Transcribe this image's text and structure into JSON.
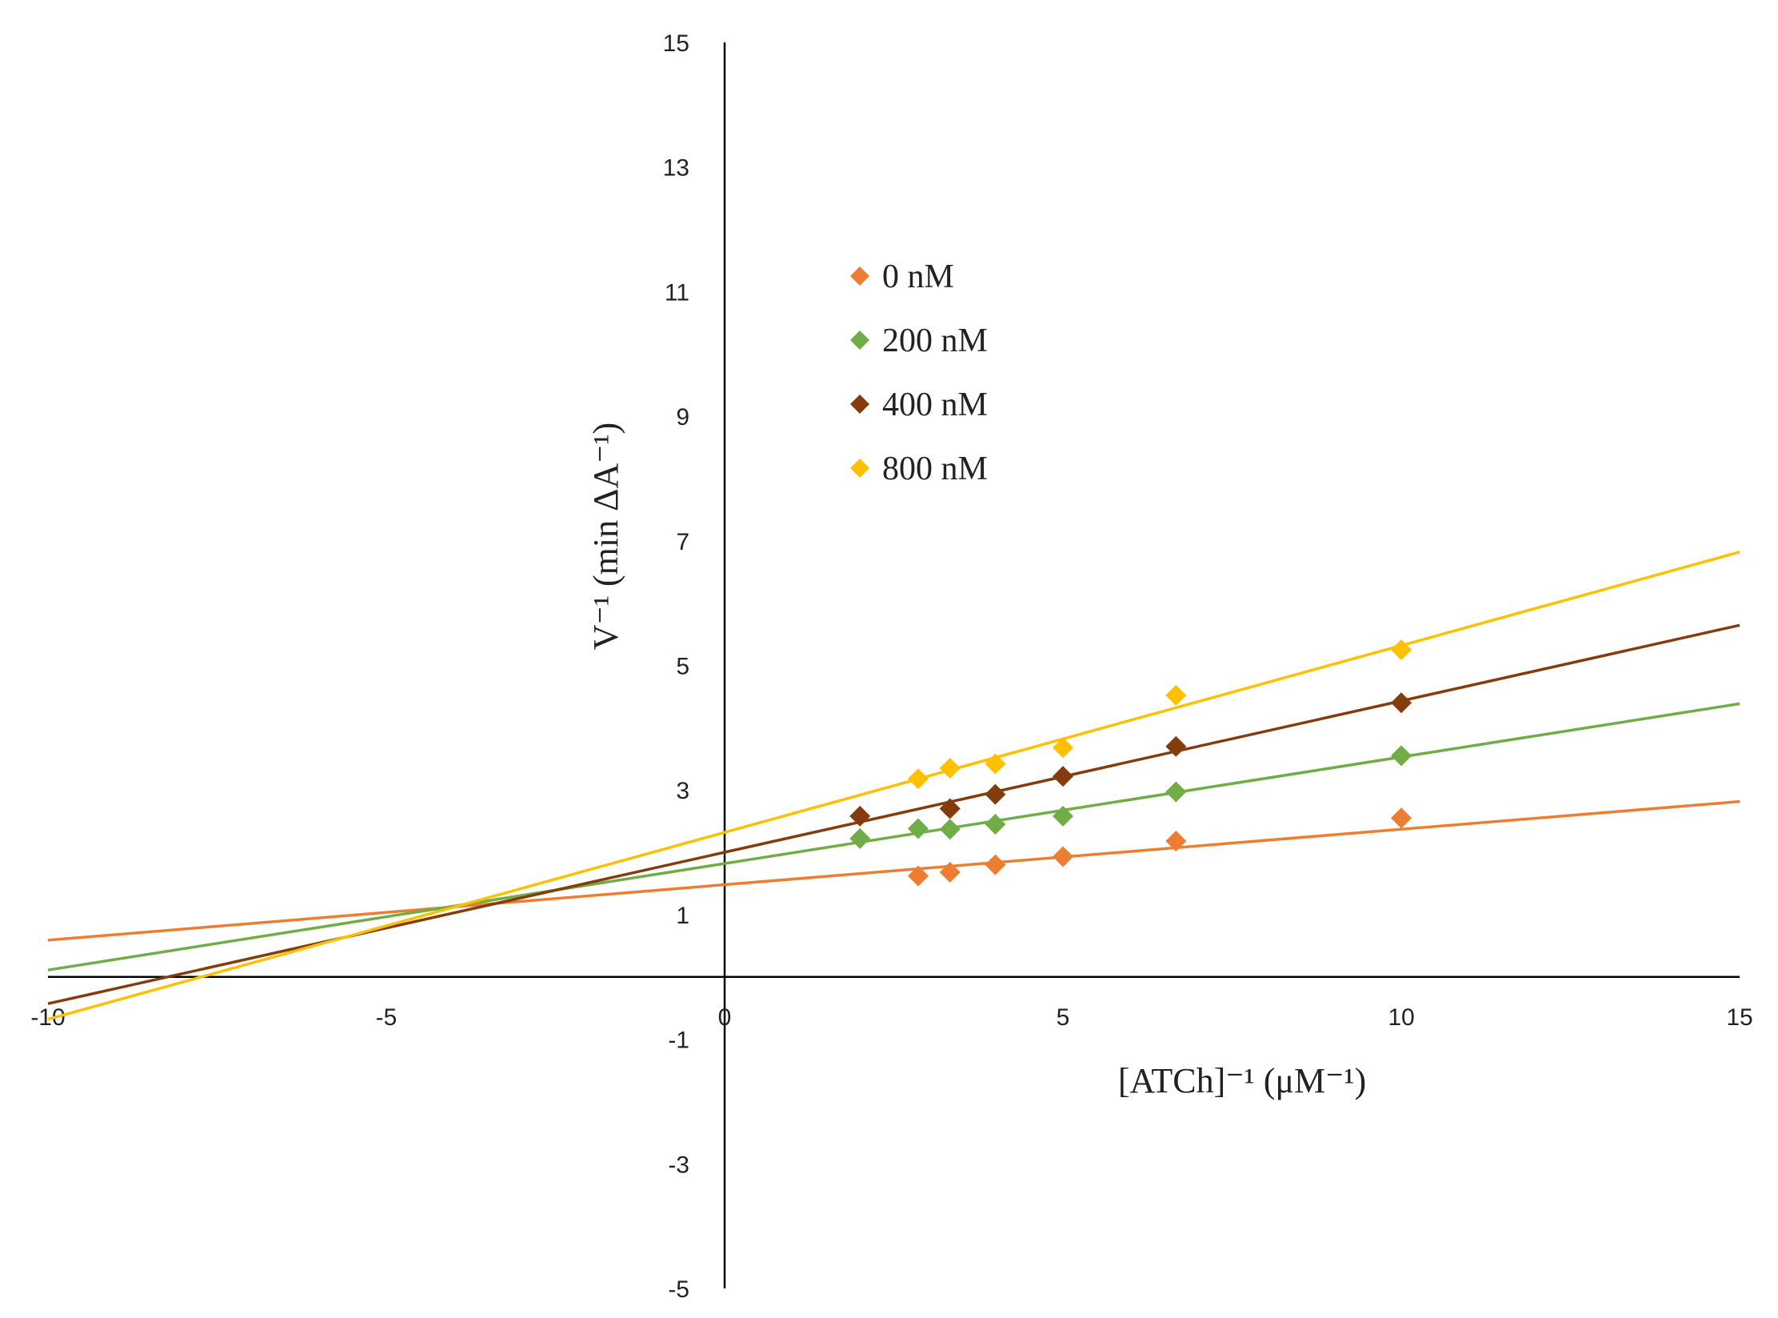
{
  "chart_data": {
    "type": "scatter",
    "title": "",
    "xlabel": "[ATCh]⁻¹ (μM⁻¹)",
    "ylabel": "V⁻¹ (min ΔA⁻¹)",
    "xlim": [
      -10,
      15
    ],
    "ylim": [
      -5,
      15
    ],
    "x_ticks": [
      -10,
      -5,
      0,
      5,
      10,
      15
    ],
    "y_ticks": [
      -5,
      -3,
      -1,
      1,
      3,
      5,
      7,
      9,
      11,
      13,
      15
    ],
    "x_tick_labels": [
      "-10",
      "-5",
      "0",
      "5",
      "10",
      "15"
    ],
    "y_tick_labels": [
      "-5",
      "-3",
      "-1",
      "1",
      "3",
      "5",
      "7",
      "9",
      "11",
      "13",
      "15"
    ],
    "legend_position": "upper-left-center",
    "series": [
      {
        "name": "0 nM",
        "color": "#ED7D31",
        "marker": "diamond",
        "points": [
          [
            2.86,
            1.62
          ],
          [
            3.33,
            1.68
          ],
          [
            4.0,
            1.8
          ],
          [
            5.0,
            1.93
          ],
          [
            6.67,
            2.18
          ],
          [
            10.0,
            2.55
          ]
        ],
        "trendline": {
          "slope": 0.089,
          "intercept": 1.48
        }
      },
      {
        "name": "200 nM",
        "color": "#70AD47",
        "marker": "diamond",
        "points": [
          [
            2.0,
            2.22
          ],
          [
            2.86,
            2.38
          ],
          [
            3.33,
            2.37
          ],
          [
            4.0,
            2.45
          ],
          [
            5.0,
            2.58
          ],
          [
            6.67,
            2.97
          ],
          [
            10.0,
            3.55
          ]
        ],
        "trendline": {
          "slope": 0.171,
          "intercept": 1.82
        }
      },
      {
        "name": "400 nM",
        "color": "#843C0C",
        "marker": "diamond",
        "points": [
          [
            2.0,
            2.58
          ],
          [
            3.33,
            2.7
          ],
          [
            4.0,
            2.93
          ],
          [
            5.0,
            3.22
          ],
          [
            6.67,
            3.7
          ],
          [
            10.0,
            4.4
          ]
        ],
        "trendline": {
          "slope": 0.243,
          "intercept": 2.0
        }
      },
      {
        "name": "800 nM",
        "color": "#FFC000",
        "marker": "diamond",
        "points": [
          [
            2.86,
            3.18
          ],
          [
            3.33,
            3.35
          ],
          [
            4.0,
            3.42
          ],
          [
            5.0,
            3.68
          ],
          [
            6.67,
            4.52
          ],
          [
            10.0,
            5.25
          ]
        ],
        "trendline": {
          "slope": 0.3,
          "intercept": 2.32
        }
      }
    ]
  }
}
